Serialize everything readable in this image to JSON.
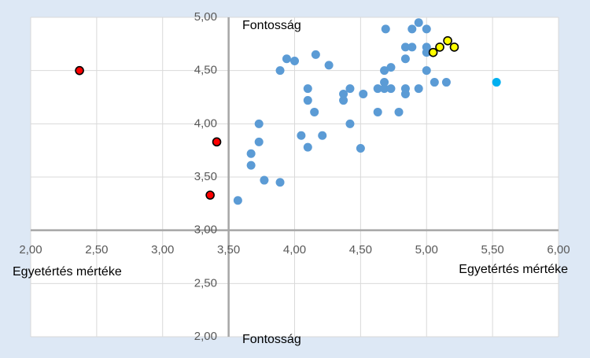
{
  "chart_data": {
    "type": "scatter",
    "title": "",
    "xlabel": "Egyetértés mértéke",
    "xlabel_secondary": "Egyetértés mértéke",
    "ylabel": "Fontosság",
    "ylabel_secondary": "Fontosság",
    "xlim": [
      2.0,
      6.0
    ],
    "ylim": [
      2.0,
      5.0
    ],
    "x_ticks": [
      "2,00",
      "2,50",
      "3,00",
      "3,50",
      "4,00",
      "4,50",
      "5,00",
      "5,50",
      "6,00"
    ],
    "y_ticks": [
      "2,00",
      "2,50",
      "3,00",
      "3,50",
      "4,00",
      "4,50",
      "5,00"
    ],
    "crossing": {
      "x": 3.5,
      "y": 3.0
    },
    "grid": true,
    "colors": {
      "background": "#dde8f5",
      "plot_area": "#ffffff",
      "gridline": "#d9d9d9",
      "axis": "#a6a6a6",
      "blue": "#5b9bd5",
      "red": "#ff0000",
      "yellow": "#ffff00",
      "cyan": "#00b0f0"
    },
    "series": [
      {
        "color": "blue",
        "points": [
          [
            3.57,
            3.28
          ],
          [
            3.67,
            3.61
          ],
          [
            3.67,
            3.72
          ],
          [
            3.73,
            3.83
          ],
          [
            3.73,
            4.0
          ],
          [
            3.77,
            3.47
          ],
          [
            3.89,
            3.45
          ],
          [
            3.89,
            4.5
          ],
          [
            3.94,
            4.61
          ],
          [
            4.0,
            4.59
          ],
          [
            4.05,
            3.89
          ],
          [
            4.1,
            3.78
          ],
          [
            4.1,
            4.22
          ],
          [
            4.1,
            4.33
          ],
          [
            4.15,
            4.11
          ],
          [
            4.16,
            4.65
          ],
          [
            4.21,
            3.89
          ],
          [
            4.26,
            4.55
          ],
          [
            4.37,
            4.22
          ],
          [
            4.37,
            4.28
          ],
          [
            4.42,
            4.0
          ],
          [
            4.42,
            4.33
          ],
          [
            4.5,
            3.77
          ],
          [
            4.52,
            4.28
          ],
          [
            4.63,
            4.11
          ],
          [
            4.63,
            4.33
          ],
          [
            4.68,
            4.33
          ],
          [
            4.68,
            4.39
          ],
          [
            4.68,
            4.5
          ],
          [
            4.69,
            4.89
          ],
          [
            4.73,
            4.33
          ],
          [
            4.73,
            4.53
          ],
          [
            4.79,
            4.11
          ],
          [
            4.84,
            4.28
          ],
          [
            4.84,
            4.33
          ],
          [
            4.84,
            4.61
          ],
          [
            4.84,
            4.72
          ],
          [
            4.89,
            4.72
          ],
          [
            4.89,
            4.89
          ],
          [
            4.94,
            4.33
          ],
          [
            4.94,
            4.95
          ],
          [
            5.0,
            4.5
          ],
          [
            5.0,
            4.67
          ],
          [
            5.0,
            4.72
          ],
          [
            5.0,
            4.89
          ],
          [
            5.06,
            4.39
          ],
          [
            5.15,
            4.39
          ]
        ]
      },
      {
        "color": "red",
        "points": [
          [
            2.37,
            4.5
          ],
          [
            3.41,
            3.83
          ],
          [
            3.36,
            3.33
          ]
        ]
      },
      {
        "color": "yellow",
        "points": [
          [
            5.05,
            4.67
          ],
          [
            5.1,
            4.72
          ],
          [
            5.16,
            4.78
          ],
          [
            5.21,
            4.72
          ]
        ]
      },
      {
        "color": "cyan",
        "points": [
          [
            5.53,
            4.39
          ]
        ]
      }
    ]
  }
}
